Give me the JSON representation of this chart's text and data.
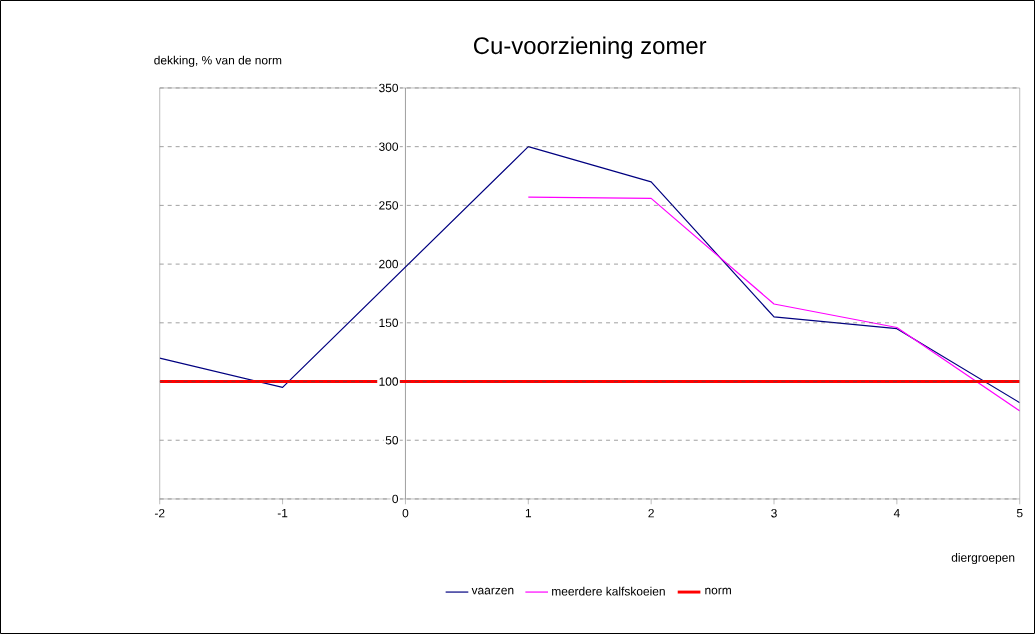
{
  "chart_data": {
    "type": "line",
    "title": "Cu-voorziening zomer",
    "ylabel": "dekking, % van de norm",
    "xlabel": "diergroepen",
    "x": [
      -2,
      -1,
      1,
      2,
      3,
      4,
      5
    ],
    "series": [
      {
        "name": "vaarzen",
        "color": "#000080",
        "values": [
          120,
          95,
          300,
          270,
          155,
          145,
          82
        ]
      },
      {
        "name": "meerdere kalfskoeien",
        "color": "#ff00ff",
        "values": [
          null,
          null,
          257,
          256,
          166,
          146,
          75
        ]
      },
      {
        "name": "norm",
        "color": "#ff0000",
        "x": [
          -2,
          5
        ],
        "values": [
          100,
          100
        ]
      }
    ],
    "xlim": [
      -2,
      5
    ],
    "ylim": [
      0,
      350
    ],
    "xticks": [
      -2,
      -1,
      0,
      1,
      2,
      3,
      4,
      5
    ],
    "yticks": [
      0,
      50,
      100,
      150,
      200,
      250,
      300,
      350
    ],
    "grid": "y",
    "legend": "bottom"
  }
}
